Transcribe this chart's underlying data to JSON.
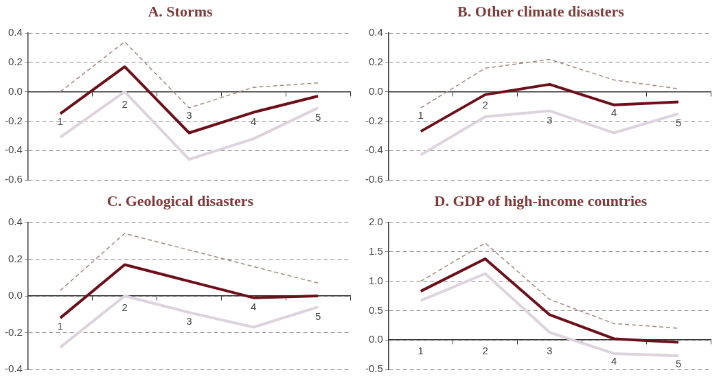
{
  "chart_data": [
    {
      "type": "line",
      "title": "A. Storms",
      "categories": [
        "1",
        "2",
        "3",
        "4",
        "5"
      ],
      "ylim": [
        -0.6,
        0.4
      ],
      "yticks": [
        -0.6,
        -0.4,
        -0.2,
        {
          "value": 0,
          "label": "0.0"
        },
        0.2,
        0.4
      ],
      "grid": "y",
      "legend": false,
      "marker": "none",
      "series": [
        {
          "color": "#ddd3dc",
          "line_style": "solid",
          "values": [
            -0.31,
            0.0,
            -0.46,
            -0.32,
            -0.11
          ]
        },
        {
          "color": "#a08880",
          "line_style": "dashed",
          "values": [
            0.0,
            0.34,
            -0.11,
            0.03,
            0.06
          ]
        },
        {
          "color": "#6b0f1a",
          "line_style": "solid",
          "values": [
            -0.15,
            0.17,
            -0.28,
            -0.14,
            -0.03
          ]
        }
      ]
    },
    {
      "type": "line",
      "title": "B. Other climate disasters",
      "categories": [
        "1",
        "2",
        "3",
        "4",
        "5"
      ],
      "ylim": [
        -0.6,
        0.4
      ],
      "yticks": [
        -0.6,
        -0.4,
        -0.2,
        {
          "value": 0,
          "label": "0.0"
        },
        0.2,
        0.4
      ],
      "grid": "y",
      "legend": false,
      "marker": "none",
      "series": [
        {
          "color": "#ddd3dc",
          "line_style": "solid",
          "values": [
            -0.43,
            -0.17,
            -0.13,
            -0.28,
            -0.15
          ]
        },
        {
          "color": "#a08880",
          "line_style": "dashed",
          "values": [
            -0.11,
            0.16,
            0.22,
            0.08,
            0.02
          ]
        },
        {
          "color": "#6b0f1a",
          "line_style": "solid",
          "values": [
            -0.27,
            -0.02,
            0.05,
            -0.09,
            -0.07
          ]
        }
      ]
    },
    {
      "type": "line",
      "title": "C. Geological disasters",
      "categories": [
        "1",
        "2",
        "3",
        "4",
        "5"
      ],
      "ylim": [
        -0.4,
        0.4
      ],
      "yticks": [
        -0.4,
        -0.2,
        {
          "value": 0,
          "label": "0.0"
        },
        0.2,
        0.4
      ],
      "grid": "y",
      "legend": false,
      "marker": "none",
      "series": [
        {
          "color": "#ddd3dc",
          "line_style": "solid",
          "values": [
            -0.28,
            0.0,
            -0.09,
            -0.17,
            -0.06
          ]
        },
        {
          "color": "#a08880",
          "line_style": "dashed",
          "values": [
            0.03,
            0.34,
            0.25,
            0.16,
            0.07
          ]
        },
        {
          "color": "#6b0f1a",
          "line_style": "solid",
          "values": [
            -0.12,
            0.17,
            0.08,
            -0.01,
            0.0
          ]
        }
      ]
    },
    {
      "type": "line",
      "title": "D. GDP of high-income countries",
      "categories": [
        "1",
        "2",
        "3",
        "4",
        "5"
      ],
      "ylim": [
        -0.5,
        2.0
      ],
      "yticks": [
        -0.5,
        {
          "value": 0,
          "label": "0.0"
        },
        0.5,
        {
          "value": 1,
          "label": "1.0"
        },
        1.5,
        {
          "value": 2,
          "label": "2.0"
        }
      ],
      "grid": "y",
      "legend": false,
      "marker": "none",
      "series": [
        {
          "color": "#ddd3dc",
          "line_style": "solid",
          "values": [
            0.67,
            1.13,
            0.13,
            -0.23,
            -0.27
          ]
        },
        {
          "color": "#a08880",
          "line_style": "dashed",
          "values": [
            1.0,
            1.65,
            0.69,
            0.28,
            0.2
          ]
        },
        {
          "color": "#6b0f1a",
          "line_style": "solid",
          "values": [
            0.83,
            1.38,
            0.43,
            0.02,
            -0.04
          ]
        }
      ]
    }
  ]
}
